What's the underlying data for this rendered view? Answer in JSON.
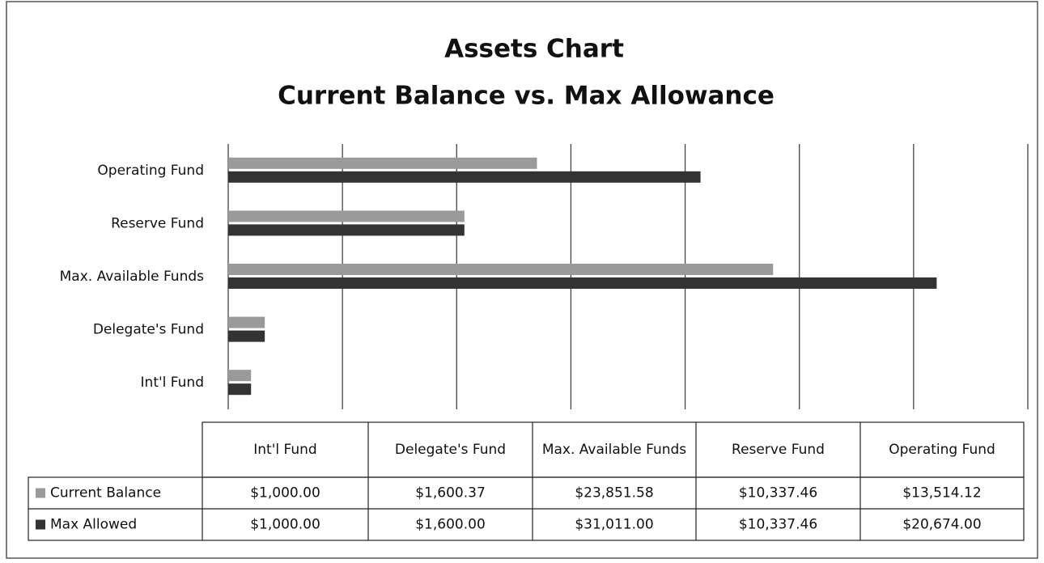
{
  "chart_data": {
    "type": "barh",
    "title": "Assets Chart",
    "subtitle": "Current  Balance vs. Max Allowance",
    "categories": [
      "Int'l Fund",
      "Delegate's Fund",
      "Max. Available Funds",
      "Reserve Fund",
      "Operating Fund"
    ],
    "series": [
      {
        "name": "Current Balance",
        "color": "#9a9a9a",
        "values": [
          1000,
          1600.37,
          23851.58,
          10337.46,
          13514.12
        ],
        "value_labels": [
          "$1,000.00",
          "$1,600.37",
          "$23,851.58",
          "$10,337.46",
          "$13,514.12"
        ]
      },
      {
        "name": "Max Allowed",
        "color": "#333333",
        "values": [
          1000,
          1600,
          31011,
          10337.46,
          20674
        ],
        "value_labels": [
          "$1,000.00",
          "$1,600.00",
          "$31,011.00",
          "$10,337.46",
          "$20,674.00"
        ]
      }
    ],
    "xlim": [
      0,
      35000
    ],
    "xticks": [
      0,
      5000,
      10000,
      15000,
      20000,
      25000,
      30000,
      35000
    ],
    "grid": true
  }
}
